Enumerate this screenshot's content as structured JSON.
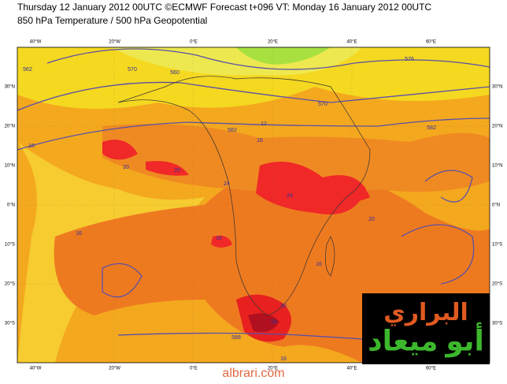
{
  "header": {
    "line1": "Thursday 12 January 2012 00UTC ©ECMWF Forecast t+096 VT: Monday 16 January 2012 00UTC",
    "line2": "850 hPa Temperature / 500 hPa Geopotential"
  },
  "map": {
    "lon_labels": [
      "40°W",
      "20°W",
      "0°E",
      "20°E",
      "40°E",
      "60°E"
    ],
    "lat_labels": [
      "30°N",
      "20°N",
      "10°N",
      "0°N",
      "10°S",
      "20°S",
      "30°S"
    ],
    "contour_labels": [
      "562",
      "570",
      "560",
      "570",
      "576",
      "582",
      "582",
      "12",
      "16",
      "16",
      "20",
      "20",
      "24",
      "24",
      "20",
      "16",
      "16",
      "16",
      "20",
      "24",
      "588",
      "16"
    ]
  },
  "watermark": {
    "line1": "البراري",
    "line2": "أبو ميعاد",
    "site": "albrari.com"
  }
}
